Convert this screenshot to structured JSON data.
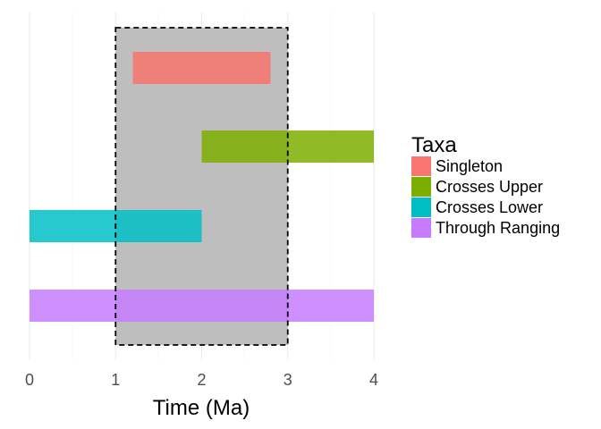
{
  "chart_data": {
    "type": "bar",
    "orientation": "horizontal",
    "xlabel": "Time (Ma)",
    "xlim": [
      0,
      4
    ],
    "x_ticks": [
      0,
      1,
      2,
      3,
      4
    ],
    "grid": true,
    "legend_title": "Taxa",
    "legend_position": "right",
    "shaded_interval": {
      "start": 1,
      "end": 3,
      "fill": "#bebebe",
      "border": "dashed"
    },
    "series": [
      {
        "name": "Singleton",
        "start": 1.2,
        "end": 2.8,
        "color": "#f8766d"
      },
      {
        "name": "Crosses Upper",
        "start": 2,
        "end": 4,
        "color": "#7cae00"
      },
      {
        "name": "Crosses Lower",
        "start": 0,
        "end": 2,
        "color": "#00bfc4"
      },
      {
        "name": "Through Ranging",
        "start": 0,
        "end": 4,
        "color": "#c77cff"
      }
    ]
  }
}
